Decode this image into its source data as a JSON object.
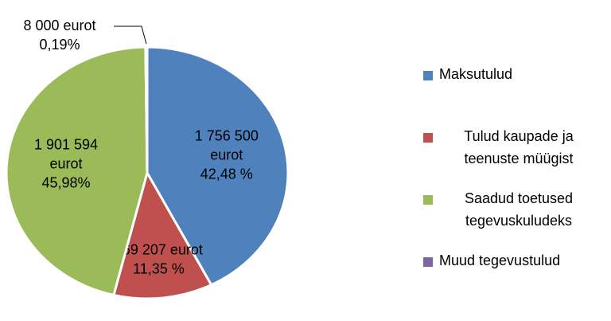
{
  "chart_data": {
    "type": "pie",
    "series": [
      {
        "name": "Maksutulud",
        "color": "#4f81bd",
        "values": [
          1756500
        ]
      },
      {
        "name": "Tulud kaupade ja teenuste müügist",
        "color": "#c0504d",
        "values": [
          469207
        ]
      },
      {
        "name": "Saadud toetused tegevuskuludeks",
        "color": "#9bbb59",
        "values": [
          1901594
        ]
      },
      {
        "name": "Muud tegevustulud",
        "color": "#8064a2",
        "values": [
          8000
        ]
      }
    ],
    "value_labels": [
      [
        "1 756 500",
        "eurot",
        "42,48 %"
      ],
      [
        "469 207 eurot",
        "11,35 %"
      ],
      [
        "1 901 594",
        "eurot",
        "45,98%"
      ],
      [
        "8 000 eurot",
        "0,19%"
      ]
    ],
    "legend": "right"
  }
}
